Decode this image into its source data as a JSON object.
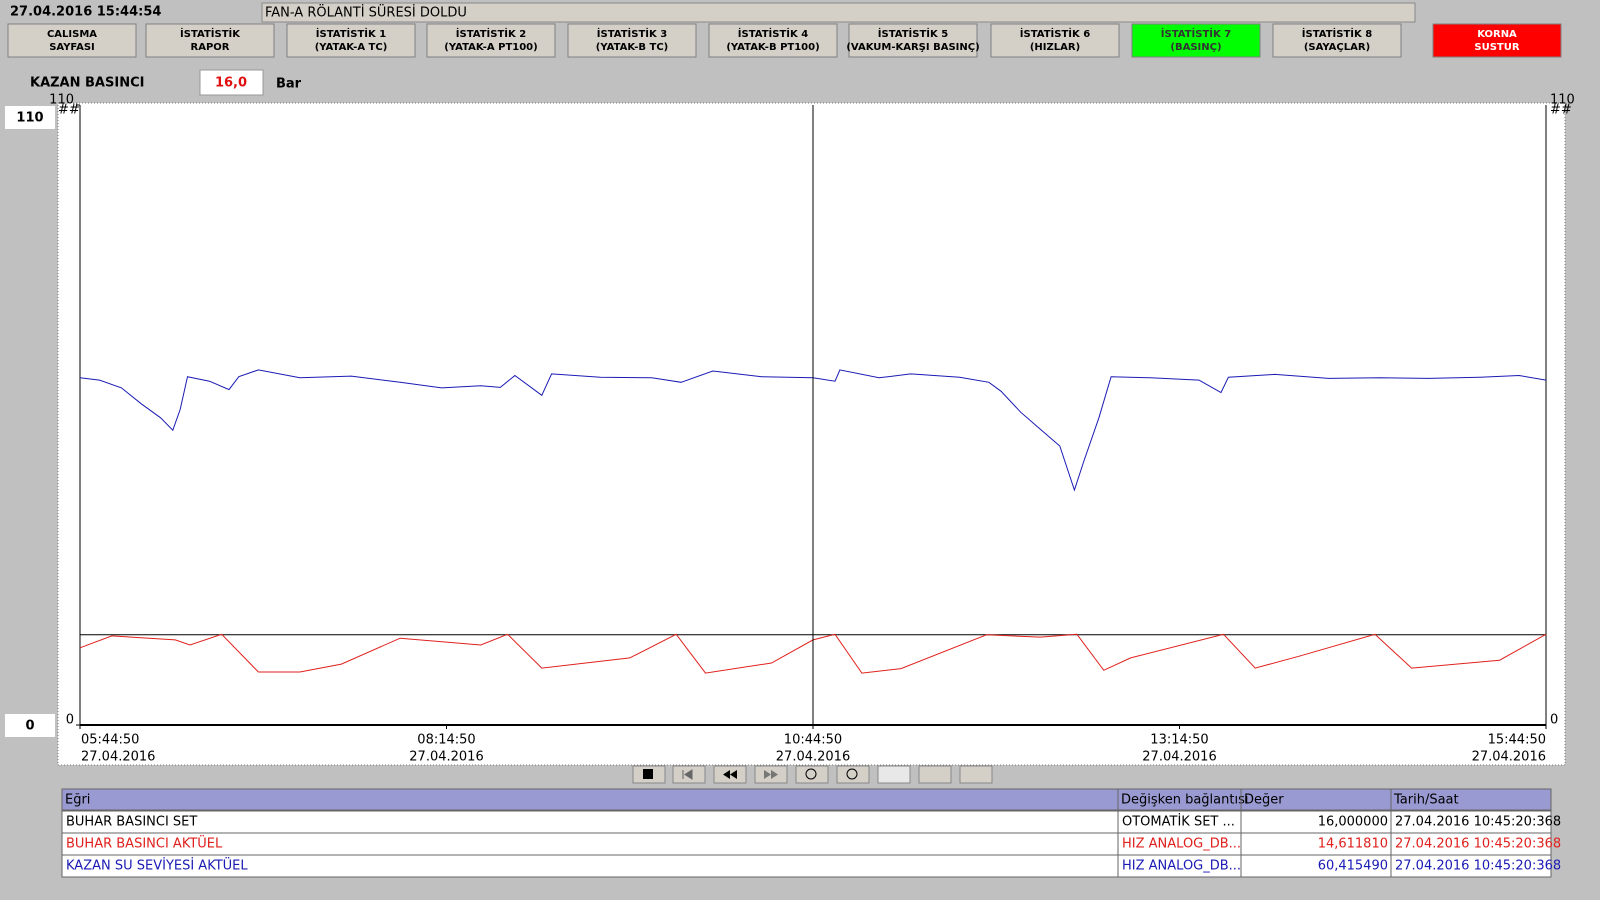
{
  "header": {
    "datetime": "27.04.2016 15:44:54",
    "message": "FAN-A RÖLANTİ SÜRESİ DOLDU"
  },
  "buttons": [
    {
      "lines": [
        "CALISMA",
        "SAYFASI"
      ],
      "color": "#d4d0c8"
    },
    {
      "lines": [
        "İSTATİSTİK",
        "RAPOR"
      ],
      "color": "#d4d0c8"
    },
    {
      "lines": [
        "İSTATİSTİK 1",
        "(YATAK-A TC)"
      ],
      "color": "#d4d0c8"
    },
    {
      "lines": [
        "İSTATİSTİK 2",
        "(YATAK-A PT100)"
      ],
      "color": "#d4d0c8"
    },
    {
      "lines": [
        "İSTATİSTİK 3",
        "(YATAK-B TC)"
      ],
      "color": "#d4d0c8"
    },
    {
      "lines": [
        "İSTATİSTİK 4",
        "(YATAK-B PT100)"
      ],
      "color": "#d4d0c8"
    },
    {
      "lines": [
        "İSTATİSTİK 5",
        "(VAKUM-KARŞI BASINÇ)"
      ],
      "color": "#d4d0c8"
    },
    {
      "lines": [
        "İSTATİSTİK 6",
        "(HIZLAR)"
      ],
      "color": "#d4d0c8"
    },
    {
      "lines": [
        "İSTATİSTİK 7",
        "(BASINÇ)"
      ],
      "color": "#00ff00"
    },
    {
      "lines": [
        "İSTATİSTİK 8",
        "(SAYAÇLAR)"
      ],
      "color": "#d4d0c8"
    },
    {
      "lines": [
        "KORNA",
        "SUSTUR"
      ],
      "color": "#ff0000"
    }
  ],
  "readout": {
    "label": "KAZAN BASINCI",
    "value": "16,0",
    "unit": "Bar"
  },
  "chart_data": {
    "type": "line",
    "top_marker": "##",
    "xlim": [
      "05:44:50",
      "15:44:50"
    ],
    "ylim": [
      0,
      110
    ],
    "yticks": [
      0,
      110
    ],
    "xticks": [
      {
        "value": "05:44:50",
        "label": "05:44:50",
        "date": "27.04.2016"
      },
      {
        "value": "08:14:50",
        "label": "08:14:50",
        "date": "27.04.2016"
      },
      {
        "value": "10:44:50",
        "label": "10:44:50",
        "date": "27.04.2016"
      },
      {
        "value": "13:14:50",
        "label": "13:14:50",
        "date": "27.04.2016"
      },
      {
        "value": "15:44:50",
        "label": "15:44:50",
        "date": "27.04.2016"
      }
    ],
    "cursor": "10:44:50",
    "series": [
      {
        "name": "BUHAR BASINCI SET",
        "color": "#000000",
        "x": [
          "05:44:50",
          "15:44:50"
        ],
        "values": [
          16,
          16
        ]
      },
      {
        "name": "BUHAR BASINCI AKTÜEL",
        "color": "#e0201c",
        "x": [
          "05:44:50",
          "05:57:50",
          "06:23:50",
          "06:29:50",
          "06:42:50",
          "06:57:50",
          "07:14:50",
          "07:31:50",
          "07:55:50",
          "08:28:50",
          "08:39:50",
          "08:53:50",
          "09:29:50",
          "09:48:50",
          "10:00:50",
          "10:27:50",
          "10:44:50",
          "10:53:50",
          "11:04:50",
          "11:20:50",
          "11:55:50",
          "12:17:50",
          "12:32:50",
          "12:43:50",
          "12:54:50",
          "13:32:50",
          "13:45:50",
          "14:03:50",
          "14:34:50",
          "14:49:50",
          "15:25:50",
          "15:44:50"
        ],
        "values": [
          13.7,
          15.8,
          15.1,
          14.2,
          16.1,
          9.4,
          9.4,
          10.8,
          15.4,
          14.2,
          16.1,
          10.1,
          11.9,
          16.1,
          9.2,
          11.0,
          15.1,
          16.1,
          9.2,
          10.0,
          16.0,
          15.6,
          16.1,
          9.7,
          11.9,
          16.1,
          10.1,
          12.2,
          16.1,
          10.1,
          11.5,
          16.1
        ]
      },
      {
        "name": "KAZAN SU SEVİYESİ AKTÜEL",
        "color": "#1a1ab4",
        "x": [
          "05:44:50",
          "05:52:50",
          "06:01:50",
          "06:09:50",
          "06:17:50",
          "06:22:50",
          "06:25:50",
          "06:28:50",
          "06:37:50",
          "06:45:50",
          "06:49:50",
          "06:57:50",
          "07:14:50",
          "07:35:50",
          "07:55:50",
          "08:12:50",
          "08:28:50",
          "08:36:50",
          "08:42:50",
          "08:53:50",
          "08:57:50",
          "09:17:50",
          "09:38:50",
          "09:50:50",
          "10:03:50",
          "10:23:50",
          "10:44:50",
          "10:53:50",
          "10:55:50",
          "11:11:50",
          "11:24:50",
          "11:44:50",
          "11:56:50",
          "12:01:50",
          "12:09:50",
          "12:17:50",
          "12:25:50",
          "12:31:50",
          "12:35:50",
          "12:41:50",
          "12:46:50",
          "13:02:50",
          "13:22:50",
          "13:31:50",
          "13:34:50",
          "13:53:50",
          "14:15:50",
          "14:36:50",
          "14:56:50",
          "15:17:50",
          "15:33:50",
          "15:44:50"
        ],
        "values": [
          61.6,
          61.2,
          59.8,
          57.0,
          54.5,
          52.3,
          56.0,
          61.8,
          61.0,
          59.5,
          61.8,
          63.0,
          61.6,
          61.9,
          60.8,
          59.8,
          60.2,
          59.9,
          62.0,
          58.5,
          62.3,
          61.7,
          61.6,
          60.8,
          62.8,
          61.8,
          61.6,
          61.0,
          63.0,
          61.6,
          62.3,
          61.7,
          60.8,
          59.2,
          55.5,
          52.5,
          49.5,
          41.7,
          47.0,
          54.5,
          61.8,
          61.6,
          61.2,
          59.0,
          61.7,
          62.2,
          61.5,
          61.6,
          61.5,
          61.7,
          62.0,
          61.2
        ]
      }
    ]
  },
  "table": {
    "columns": [
      "Eğri",
      "Değişken bağlantısı",
      "Değer",
      "Tarih/Saat"
    ],
    "rows": [
      [
        "BUHAR BASINCI SET",
        "OTOMATİK SET ...",
        "16,000000",
        "27.04.2016 10:45:20:368"
      ],
      [
        "BUHAR BASINCI AKTÜEL",
        "HIZ ANALOG_DB...",
        "14,611810",
        "27.04.2016 10:45:20:368"
      ],
      [
        "KAZAN SU SEVİYESİ AKTÜEL",
        "HIZ ANALOG_DB...",
        "60,415490",
        "27.04.2016 10:45:20:368"
      ]
    ]
  }
}
